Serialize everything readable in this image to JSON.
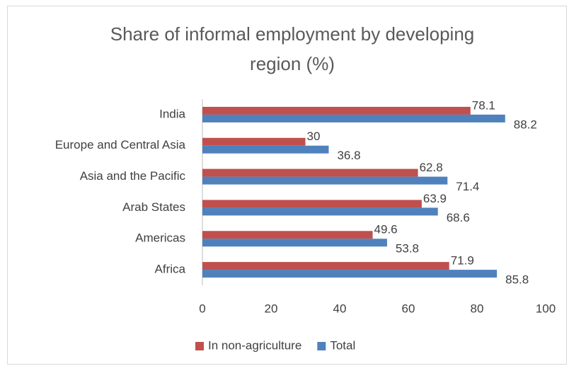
{
  "chart_data": {
    "type": "hbar",
    "title": "Share of informal employment by developing region  (%)",
    "categories": [
      "Africa",
      "Americas",
      "Arab States",
      "Asia and the Pacific",
      "Europe and Central Asia",
      "India"
    ],
    "series": [
      {
        "name": "In non-agriculture",
        "color": "#c0504d",
        "values": [
          71.9,
          49.6,
          63.9,
          62.8,
          30,
          78.1
        ]
      },
      {
        "name": "Total",
        "color": "#4f81bd",
        "values": [
          85.8,
          53.8,
          68.6,
          71.4,
          36.8,
          88.2
        ]
      }
    ],
    "xlim": [
      0,
      100
    ],
    "xticks": [
      0,
      20,
      40,
      60,
      80,
      100
    ],
    "grid": false,
    "legend": "bottom"
  }
}
